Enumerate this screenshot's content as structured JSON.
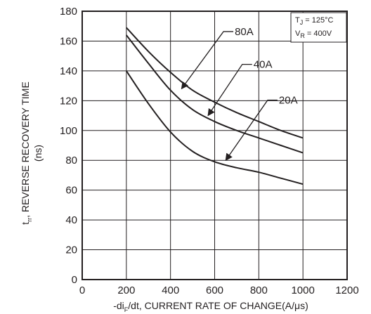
{
  "chart_data": {
    "type": "line",
    "xlabel": "-di",
    "xlabel_sub": "F",
    "xlabel_rest": "/dt, CURRENT RATE OF CHANGE(A/μs)",
    "ylabel_main": "t",
    "ylabel_sub": "rr",
    "ylabel_rest": ", REVERSE RECOVERY TIME",
    "ylabel_unit": "(ns)",
    "xlim": [
      0,
      1200
    ],
    "ylim": [
      0,
      180
    ],
    "x_ticks": [
      "0",
      "200",
      "400",
      "600",
      "800",
      "1000",
      "1200"
    ],
    "y_ticks": [
      "0",
      "20",
      "40",
      "60",
      "80",
      "100",
      "120",
      "140",
      "160",
      "180"
    ],
    "grid": true,
    "conditions": [
      {
        "main": "T",
        "sub": "J",
        "rest": " = 125°C"
      },
      {
        "main": "V",
        "sub": "R",
        "rest": " = 400V"
      }
    ],
    "series": [
      {
        "name": "80A",
        "points": [
          [
            200,
            169
          ],
          [
            300,
            153
          ],
          [
            400,
            139
          ],
          [
            500,
            127
          ],
          [
            600,
            119
          ],
          [
            700,
            112
          ],
          [
            800,
            106
          ],
          [
            900,
            100
          ],
          [
            1000,
            95
          ]
        ],
        "label_anchor": [
          640,
          164
        ],
        "arrow_to": [
          450,
          128
        ]
      },
      {
        "name": "40A",
        "points": [
          [
            200,
            164
          ],
          [
            300,
            145
          ],
          [
            400,
            127
          ],
          [
            500,
            114
          ],
          [
            600,
            106
          ],
          [
            700,
            100
          ],
          [
            800,
            95
          ],
          [
            900,
            90
          ],
          [
            1000,
            85
          ]
        ],
        "label_anchor": [
          725,
          142
        ],
        "arrow_to": [
          570,
          110
        ]
      },
      {
        "name": "20A",
        "points": [
          [
            200,
            140
          ],
          [
            300,
            118
          ],
          [
            400,
            99
          ],
          [
            500,
            86
          ],
          [
            600,
            79
          ],
          [
            700,
            75
          ],
          [
            800,
            72
          ],
          [
            900,
            68
          ],
          [
            1000,
            64
          ]
        ],
        "label_anchor": [
          840,
          118
        ],
        "arrow_to": [
          650,
          80
        ]
      }
    ]
  }
}
